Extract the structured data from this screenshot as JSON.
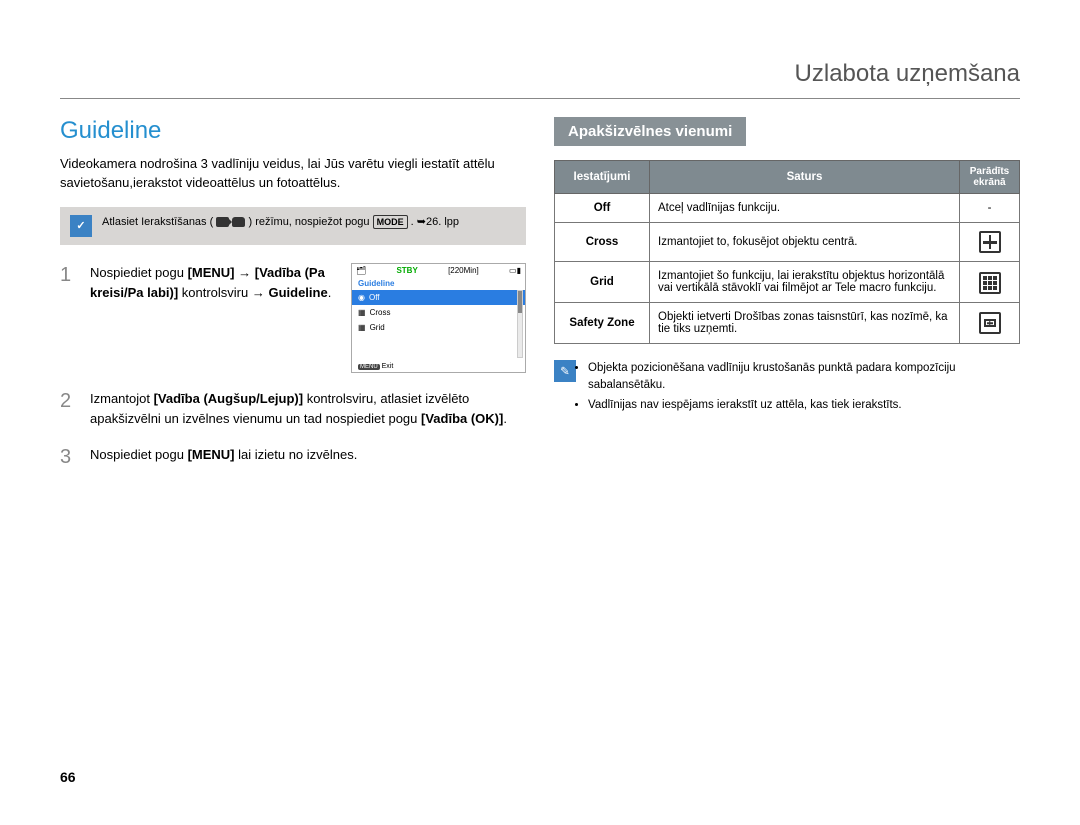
{
  "header": {
    "title": "Uzlabota uzņemšana"
  },
  "left": {
    "title": "Guideline",
    "intro": "Videokamera nodrošina 3 vadlīniju veidus, lai Jūs varētu viegli iestatīt attēlu savietošanu,ierakstot videoattēlus un fotoattēlus.",
    "note_prefix": "Atlasiet Ierakstīšanas (",
    "note_middle": ") režīmu, nospiežot pogu ",
    "note_mode": "MODE",
    "note_suffix": ". ➥26. lpp",
    "steps": [
      "Nospiediet pogu <b>[MENU]</b> → <b>[Vadība (Pa kreisi/Pa labi)]</b> kontrolsviru → <b>Guideline</b>.",
      "Izmantojot <b>[Vadība (Augšup/Lejup)]</b> kontrolsviru, atlasiet izvēlēto apakšizvēlni un izvēlnes vienumu un tad nospiediet pogu <b>[Vadība (OK)]</b>.",
      "Nospiediet pogu <b>[MENU]</b> lai izietu no izvēlnes."
    ],
    "lcd": {
      "stby": "STBY",
      "time": "[220Min]",
      "label": "Guideline",
      "items": [
        "Off",
        "Cross",
        "Grid"
      ],
      "selected_index": 0,
      "exit": "Exit",
      "menu": "MENU"
    }
  },
  "right": {
    "subtitle": "Apakšizvēlnes vienumi",
    "table": {
      "headers": [
        "Iestatījumi",
        "Saturs",
        "Parādīts ekrānā"
      ],
      "rows": [
        {
          "setting": "Off",
          "desc": "Atceļ vadlīnijas funkciju.",
          "icon": "none"
        },
        {
          "setting": "Cross",
          "desc": "Izmantojiet to, fokusējot objektu centrā.",
          "icon": "cross"
        },
        {
          "setting": "Grid",
          "desc": "Izmantojiet šo funkciju, lai ierakstītu objektus horizontālā vai vertikālā stāvoklī vai filmējot ar Tele macro funkciju.",
          "icon": "grid"
        },
        {
          "setting": "Safety Zone",
          "desc": "Objekti ietverti Drošības zonas taisnstūrī, kas nozīmē, ka tie tiks uzņemti.",
          "icon": "safe"
        }
      ]
    },
    "tips": [
      "Objekta pozicionēšana vadlīniju krustošanās punktā padara kompozīciju sabalansētāku.",
      "Vadlīnijas nav iespējams ierakstīt uz attēla, kas tiek ierakstīts."
    ]
  },
  "page_number": "66",
  "colors": {
    "accent_blue": "#258fcf",
    "panel_grey": "#889196",
    "note_bg": "#d8d6d4",
    "badge_blue": "#3b82c4"
  }
}
